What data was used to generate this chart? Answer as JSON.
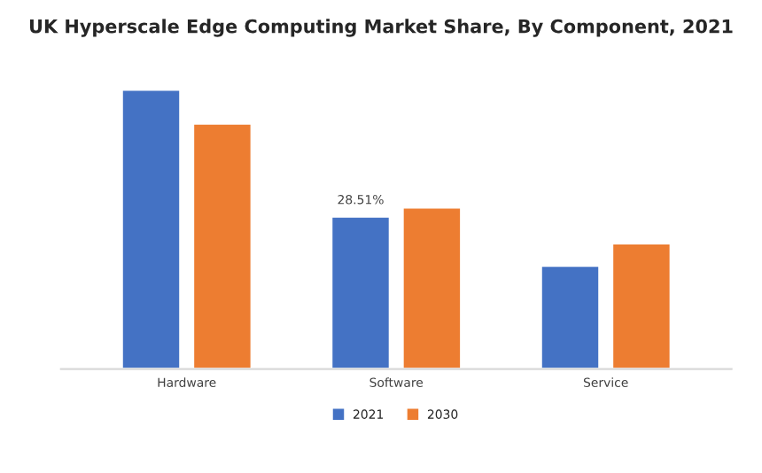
{
  "chart_data": {
    "type": "bar",
    "title": "UK Hyperscale Edge Computing Market Share, By Component, 2021",
    "categories": [
      "Hardware",
      "Software",
      "Service"
    ],
    "tick_labels": "x",
    "series": [
      {
        "name": "2021",
        "color": "#4472c4",
        "values": [
          52.2,
          28.51,
          19.3
        ],
        "value_labels": [
          null,
          "28.51%",
          null
        ]
      },
      {
        "name": "2030",
        "color": "#ed7d31",
        "values": [
          45.9,
          30.2,
          23.5
        ]
      }
    ],
    "legend": "bottom",
    "grid": false
  }
}
